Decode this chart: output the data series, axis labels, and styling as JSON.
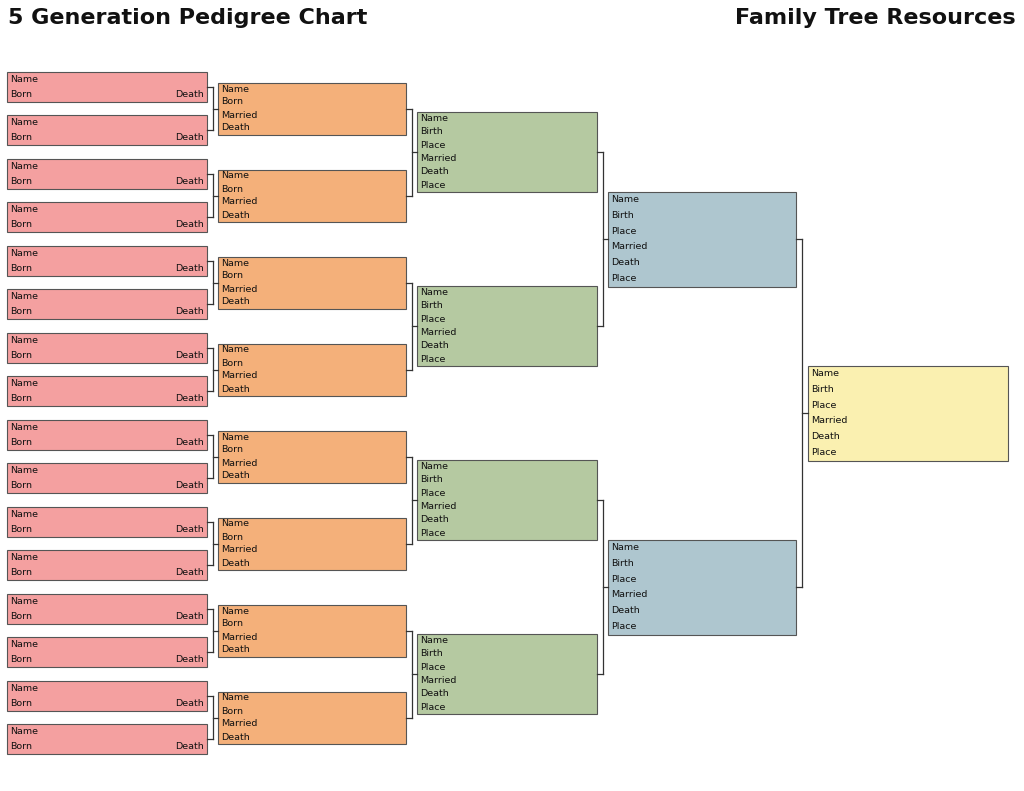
{
  "title_left": "5 Generation Pedigree Chart",
  "title_right": "Family Tree Resources",
  "bg_color": "#ffffff",
  "pink": "#f4a0a0",
  "orange": "#f4b07a",
  "green_c": "#b5c9a1",
  "blue_c": "#aec6cf",
  "yellow_c": "#faf0b0",
  "border_color": "#555555",
  "line_color": "#333333",
  "text_color": "#111111",
  "labels5_left": [
    "Name",
    "Born"
  ],
  "labels5_right": [
    "",
    "Death"
  ],
  "labels4": [
    "Name",
    "Born",
    "Married",
    "Death"
  ],
  "labels3": [
    "Name",
    "Birth",
    "Place",
    "Married",
    "Death",
    "Place"
  ],
  "labels2": [
    "Name",
    "Birth",
    "Place",
    "Married",
    "Death",
    "Place"
  ],
  "labels1": [
    "Name",
    "Birth",
    "Place",
    "Married",
    "Death",
    "Place"
  ],
  "fig_w": 10.24,
  "fig_h": 7.91,
  "dpi": 100
}
